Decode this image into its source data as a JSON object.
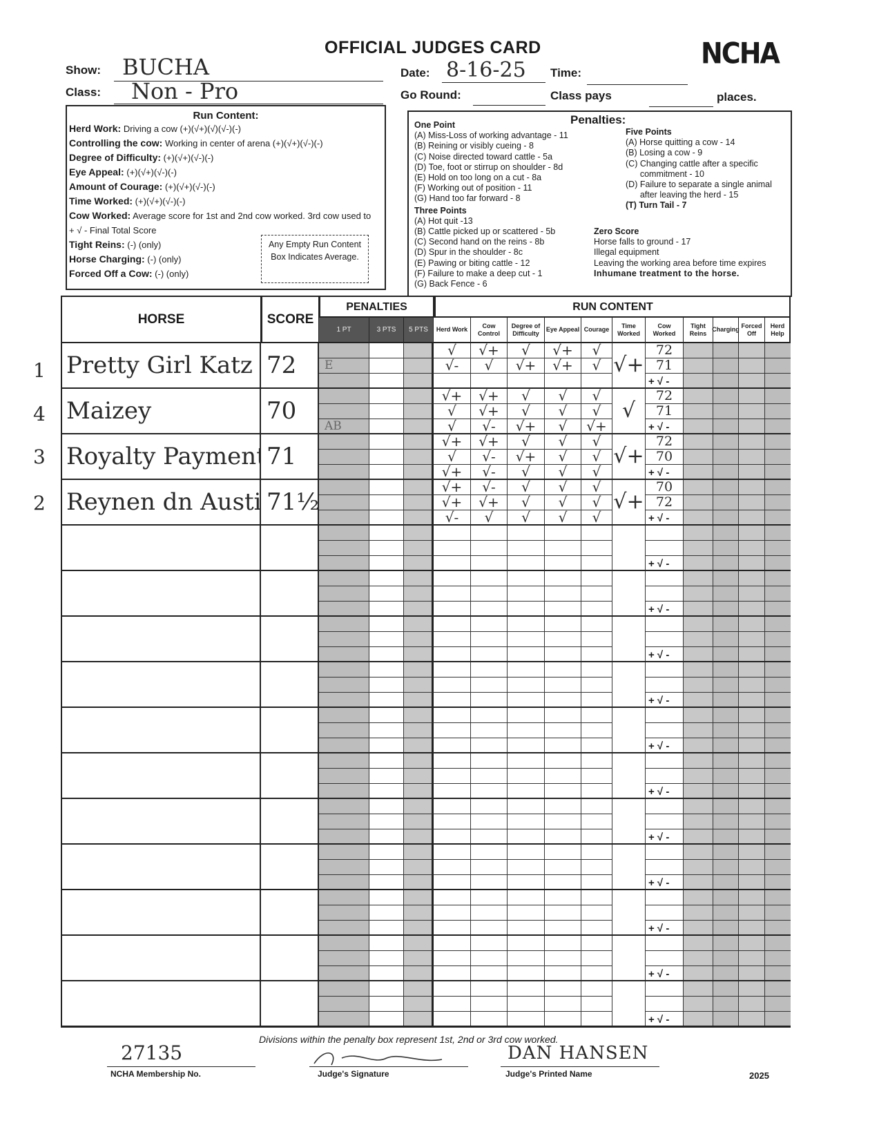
{
  "header": {
    "title": "OFFICIAL JUDGES CARD",
    "logo_text": "NCHA",
    "show_label": "Show:",
    "show_value": "BUCHA",
    "class_label": "Class:",
    "class_value": "Non - Pro",
    "date_label": "Date:",
    "date_value": "8-16-25",
    "time_label": "Time:",
    "time_value": "",
    "go_round_label": "Go Round:",
    "go_round_value": "",
    "class_pays_label": "Class pays",
    "class_pays_value": "",
    "places_label": "places."
  },
  "run_content_box": {
    "title": "Run Content:",
    "lines": [
      {
        "label": "Herd Work:",
        "text": " Driving a cow (+)(√+)(√)(√-)(-)"
      },
      {
        "label": "Controlling the cow:",
        "text": " Working in center of arena (+)(√+)(√-)(-)"
      },
      {
        "label": "Degree of Difficulty:",
        "text": " (+)(√+)(√-)(-)"
      },
      {
        "label": "Eye Appeal:",
        "text": " (+)(√+)(√-)(-)"
      },
      {
        "label": "Amount of Courage:",
        "text": " (+)(√+)(√-)(-)"
      },
      {
        "label": "Time Worked:",
        "text": " (+)(√+)(√-)(-)"
      },
      {
        "label": "Cow Worked:",
        "text": " Average score for 1st and 2nd cow worked.  3rd cow used to"
      },
      {
        "label": "",
        "text": "   + √ - Final Total Score"
      },
      {
        "label": "Tight Reins:",
        "text": " (-) (only)"
      },
      {
        "label": "Horse Charging:",
        "text": " (-) (only)"
      },
      {
        "label": "Forced Off a Cow:",
        "text": " (-) (only)"
      }
    ],
    "note": "Any Empty Run Content Box Indicates Average."
  },
  "penalties_box": {
    "title": "Penalties:",
    "one_point": {
      "heading": "One Point",
      "items": [
        "(A) Miss-Loss of working advantage - 11",
        "(B) Reining or visibly cueing - 8",
        "(C) Noise directed toward cattle - 5a",
        "(D) Toe, foot or stirrup on shoulder - 8d",
        "(E) Hold on too long on a cut - 8a",
        "(F) Working out of position - 11",
        "(G) Hand too far forward - 8"
      ]
    },
    "three_points": {
      "heading": "Three Points",
      "items": [
        "(A) Hot quit -13",
        "(B) Cattle picked up or scattered - 5b",
        "(C) Second hand on the reins - 8b",
        "(D) Spur in the shoulder - 8c",
        "(E) Pawing or biting cattle - 12",
        "(F) Failure to make a deep cut - 1",
        "(G) Back Fence - 6"
      ]
    },
    "five_points": {
      "heading": "Five Points",
      "items": [
        "(A) Horse quitting a cow - 14",
        "(B) Losing a cow - 9",
        "(C) Changing cattle after a specific",
        "      commitment - 10",
        "(D) Failure to separate a single animal",
        "      after leaving the herd - 15",
        "(T) Turn Tail - 7"
      ]
    },
    "zero_score": {
      "heading": "Zero Score",
      "items": [
        "Horse falls to ground - 17",
        "Illegal equipment",
        "Leaving the working area before time expires",
        "Inhumane treatment to the horse."
      ]
    }
  },
  "table": {
    "horse_header": "HORSE",
    "score_header": "SCORE",
    "penalties_header": "PENALTIES",
    "run_content_header": "RUN CONTENT",
    "penalty_columns": [
      "1 PT",
      "3 PTS",
      "5 PTS"
    ],
    "run_columns": [
      "Herd Work",
      "Cow Control",
      "Degree of Difficulty",
      "Eye Appeal",
      "Courage",
      "Time Worked",
      "Cow Worked",
      "Tight Reins",
      "Charging",
      "Forced Off",
      "Herd Help"
    ],
    "final_mark": "+ √ -",
    "total_rows": 15,
    "entries": [
      {
        "place": "1",
        "horse": "Pretty Girl Katz",
        "score": "72",
        "penalty_1pt": [
          "",
          "E",
          ""
        ],
        "herd": [
          "√",
          "√-",
          ""
        ],
        "control": [
          "√+",
          "√",
          ""
        ],
        "difficulty": [
          "√",
          "√+",
          ""
        ],
        "eye": [
          "√+",
          "√+",
          ""
        ],
        "courage": [
          "√",
          "√",
          ""
        ],
        "time": "√+",
        "cow": [
          "72",
          "71"
        ]
      },
      {
        "place": "4",
        "horse": "Maizey",
        "score": "70",
        "penalty_1pt": [
          "",
          "",
          "AB"
        ],
        "herd": [
          "√+",
          "√",
          "√"
        ],
        "control": [
          "√+",
          "√+",
          "√-"
        ],
        "difficulty": [
          "√",
          "√",
          "√+"
        ],
        "eye": [
          "√",
          "√",
          "√"
        ],
        "courage": [
          "√",
          "√",
          "√+"
        ],
        "time": "√",
        "cow": [
          "72",
          "71"
        ]
      },
      {
        "place": "3",
        "horse": "Royalty Payment",
        "score": "71",
        "penalty_1pt": [
          "",
          "",
          ""
        ],
        "herd": [
          "√+",
          "√",
          "√+"
        ],
        "control": [
          "√+",
          "√-",
          "√-"
        ],
        "difficulty": [
          "√",
          "√+",
          "√"
        ],
        "eye": [
          "√",
          "√",
          "√"
        ],
        "courage": [
          "√",
          "√",
          "√"
        ],
        "time": "√+",
        "cow": [
          "72",
          "70"
        ]
      },
      {
        "place": "2",
        "horse": "Reynen dn Austin",
        "score": "71½",
        "penalty_1pt": [
          "",
          "",
          ""
        ],
        "herd": [
          "√+",
          "√+",
          "√-"
        ],
        "control": [
          "√-",
          "√+",
          "√"
        ],
        "difficulty": [
          "√",
          "√",
          "√"
        ],
        "eye": [
          "√",
          "√",
          "√"
        ],
        "courage": [
          "√",
          "√",
          "√"
        ],
        "time": "√+",
        "cow": [
          "70",
          "72"
        ]
      }
    ]
  },
  "footer": {
    "note": "Divisions within the penalty box represent 1st, 2nd or 3rd cow worked.",
    "membership_value": "27135",
    "membership_label": "NCHA Membership No.",
    "signature_label": "Judge's Signature",
    "signature_value": "Dan Hansen",
    "printed_name_value": "DAN HANSEN",
    "printed_name_label": "Judge's Printed Name",
    "year": "2025"
  }
}
